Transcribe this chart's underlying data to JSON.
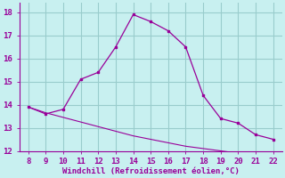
{
  "x": [
    8,
    9,
    10,
    11,
    12,
    13,
    14,
    15,
    16,
    17,
    18,
    19,
    20,
    21,
    22
  ],
  "y_curve": [
    13.9,
    13.6,
    13.8,
    15.1,
    15.4,
    16.5,
    17.9,
    17.6,
    17.2,
    16.5,
    14.4,
    13.4,
    13.2,
    12.7,
    12.5
  ],
  "y_line": [
    13.9,
    13.65,
    13.45,
    13.25,
    13.05,
    12.85,
    12.65,
    12.5,
    12.35,
    12.2,
    12.1,
    12.0,
    11.9,
    11.8,
    11.7
  ],
  "line_color": "#990099",
  "bg_color": "#c8f0f0",
  "grid_color": "#99cccc",
  "xlabel": "Windchill (Refroidissement éolien,°C)",
  "xlabel_color": "#990099",
  "tick_color": "#990099",
  "spine_color": "#990099",
  "xlim": [
    7.5,
    22.5
  ],
  "ylim": [
    12.0,
    18.4
  ],
  "yticks": [
    12,
    13,
    14,
    15,
    16,
    17,
    18
  ],
  "xticks": [
    8,
    9,
    10,
    11,
    12,
    13,
    14,
    15,
    16,
    17,
    18,
    19,
    20,
    21,
    22
  ],
  "tick_fontsize": 6.5,
  "xlabel_fontsize": 6.5
}
